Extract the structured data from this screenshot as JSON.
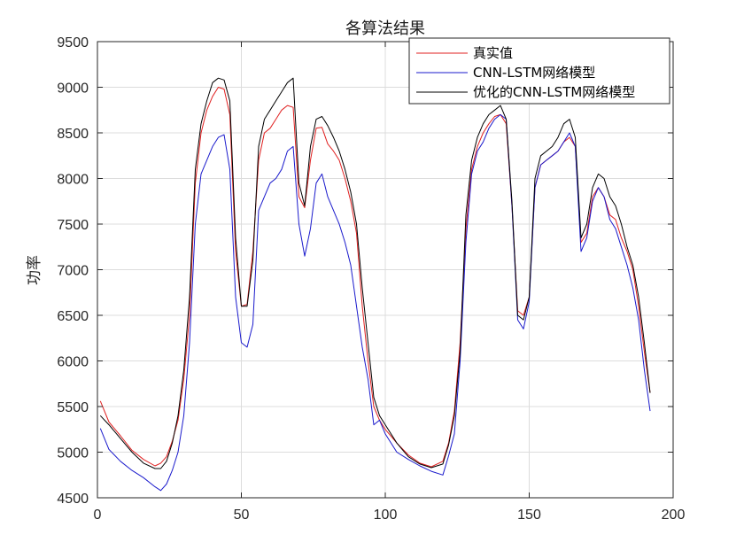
{
  "chart_data": {
    "type": "line",
    "title": "各算法结果",
    "xlabel": "",
    "ylabel": "功率",
    "xlim": [
      0,
      200
    ],
    "ylim": [
      4500,
      9500
    ],
    "xticks": [
      "0",
      "50",
      "100",
      "150",
      "200"
    ],
    "yticks": [
      "4500",
      "5000",
      "5500",
      "6000",
      "6500",
      "7000",
      "7500",
      "8000",
      "8500",
      "9000",
      "9500"
    ],
    "grid": true,
    "legend_position": "top-right",
    "x": [
      1,
      4,
      8,
      12,
      16,
      20,
      22,
      24,
      26,
      28,
      30,
      32,
      34,
      36,
      38,
      40,
      42,
      44,
      46,
      48,
      50,
      52,
      54,
      56,
      58,
      60,
      62,
      64,
      66,
      68,
      70,
      72,
      74,
      76,
      78,
      80,
      82,
      84,
      86,
      88,
      90,
      92,
      94,
      96,
      98,
      100,
      104,
      108,
      112,
      116,
      120,
      122,
      124,
      126,
      128,
      130,
      132,
      134,
      136,
      138,
      140,
      142,
      144,
      146,
      148,
      150,
      152,
      154,
      156,
      158,
      160,
      162,
      164,
      166,
      168,
      170,
      172,
      174,
      176,
      178,
      180,
      182,
      184,
      186,
      188,
      190,
      192
    ],
    "series": [
      {
        "name": "真实值",
        "color": "#e02020",
        "values": [
          5560,
          5330,
          5180,
          5020,
          4920,
          4850,
          4880,
          4950,
          5120,
          5350,
          5800,
          6500,
          7950,
          8500,
          8750,
          8900,
          9000,
          8980,
          8700,
          7200,
          6600,
          6620,
          7200,
          8200,
          8500,
          8550,
          8650,
          8750,
          8800,
          8780,
          7800,
          7680,
          8200,
          8550,
          8560,
          8380,
          8300,
          8200,
          8000,
          7750,
          7400,
          6600,
          6000,
          5500,
          5350,
          5250,
          5100,
          4970,
          4880,
          4840,
          4900,
          5100,
          5450,
          6200,
          7450,
          8100,
          8350,
          8500,
          8600,
          8680,
          8700,
          8600,
          7700,
          6550,
          6500,
          6700,
          7900,
          8150,
          8200,
          8250,
          8300,
          8400,
          8450,
          8350,
          7300,
          7400,
          7800,
          7900,
          7800,
          7600,
          7550,
          7350,
          7200,
          7000,
          6600,
          6100,
          5650
        ]
      },
      {
        "name": "CNN-LSTM网络模型",
        "color": "#1a1acc",
        "values": [
          5260,
          5030,
          4900,
          4800,
          4720,
          4620,
          4580,
          4650,
          4800,
          5000,
          5400,
          6200,
          7500,
          8050,
          8200,
          8350,
          8450,
          8480,
          8100,
          6700,
          6200,
          6150,
          6400,
          7650,
          7800,
          7950,
          8000,
          8100,
          8300,
          8350,
          7500,
          7150,
          7450,
          7950,
          8050,
          7800,
          7650,
          7500,
          7300,
          7050,
          6600,
          6150,
          5800,
          5300,
          5350,
          5200,
          5000,
          4920,
          4850,
          4790,
          4750,
          4960,
          5200,
          6000,
          7300,
          8050,
          8300,
          8400,
          8550,
          8650,
          8700,
          8650,
          7700,
          6450,
          6350,
          6650,
          7900,
          8150,
          8200,
          8250,
          8300,
          8400,
          8500,
          8350,
          7200,
          7350,
          7750,
          7900,
          7800,
          7550,
          7450,
          7250,
          7050,
          6800,
          6450,
          5900,
          5450
        ]
      },
      {
        "name": "优化的CNN-LSTM网络模型",
        "color": "#000000",
        "values": [
          5400,
          5300,
          5150,
          5000,
          4880,
          4820,
          4820,
          4900,
          5100,
          5400,
          5900,
          6700,
          8100,
          8600,
          8850,
          9050,
          9100,
          9080,
          8850,
          7350,
          6600,
          6600,
          7100,
          8350,
          8650,
          8750,
          8850,
          8950,
          9050,
          9100,
          7950,
          7700,
          8350,
          8650,
          8680,
          8580,
          8450,
          8300,
          8100,
          7850,
          7500,
          6800,
          6200,
          5600,
          5400,
          5300,
          5100,
          4950,
          4870,
          4830,
          4870,
          5080,
          5400,
          6100,
          7600,
          8200,
          8450,
          8600,
          8700,
          8750,
          8800,
          8650,
          7750,
          6500,
          6450,
          6700,
          8000,
          8250,
          8300,
          8350,
          8450,
          8600,
          8650,
          8450,
          7350,
          7500,
          7900,
          8050,
          8000,
          7800,
          7700,
          7500,
          7250,
          7050,
          6700,
          6200,
          5650
        ]
      }
    ]
  }
}
